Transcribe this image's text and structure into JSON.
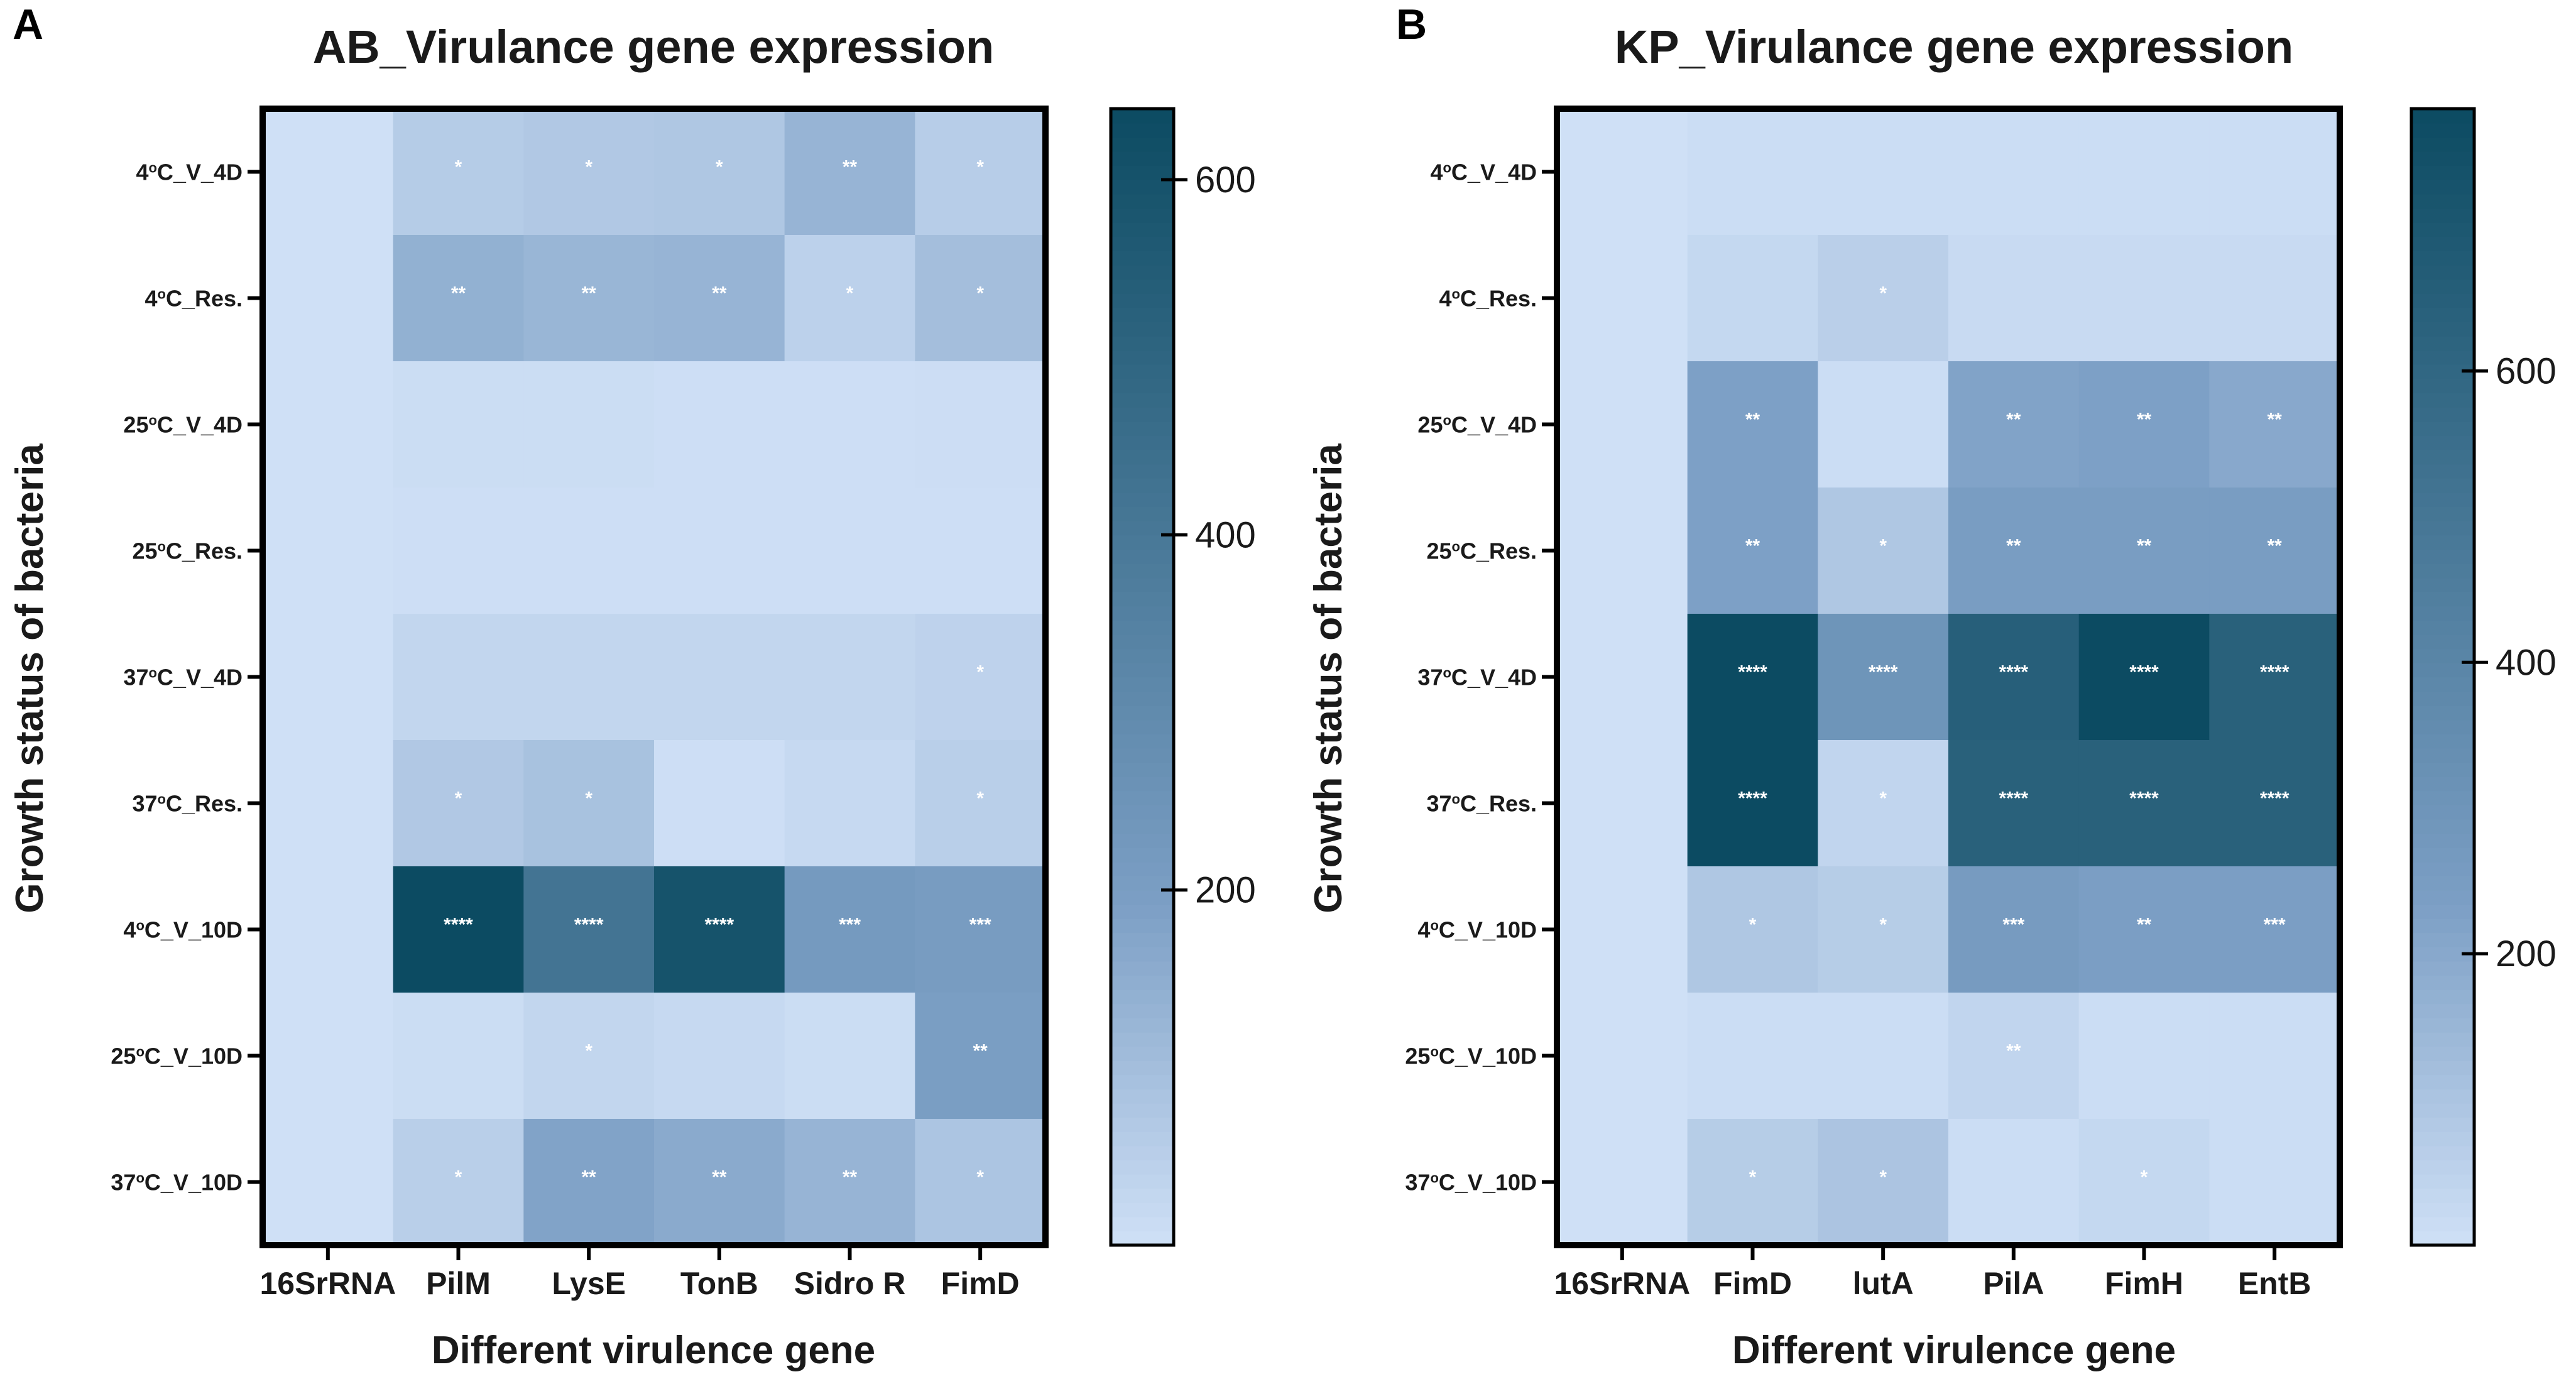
{
  "chart_data": [
    {
      "type": "heatmap",
      "panel_label": "A",
      "title": "AB_Virulance gene expression",
      "xlabel": "Different virulence gene",
      "ylabel": "Growth status of bacteria",
      "columns": [
        "16SrRNA",
        "PilM",
        "LysE",
        "TonB",
        "Sidro R",
        "FimD"
      ],
      "rows": [
        {
          "temp": "4",
          "label": "C_V_4D"
        },
        {
          "temp": "4",
          "label": "C_Res."
        },
        {
          "temp": "25",
          "label": "C_V_4D"
        },
        {
          "temp": "25",
          "label": "C_Res."
        },
        {
          "temp": "37",
          "label": "C_V_4D"
        },
        {
          "temp": "37",
          "label": "C_Res."
        },
        {
          "temp": "4",
          "label": "C_V_10D"
        },
        {
          "temp": "25",
          "label": "C_V_10D"
        },
        {
          "temp": "37",
          "label": "C_V_10D"
        }
      ],
      "degree_symbol": "o",
      "values": [
        [
          1,
          60,
          70,
          75,
          130,
          55
        ],
        [
          1,
          140,
          125,
          130,
          45,
          100
        ],
        [
          1,
          10,
          10,
          5,
          5,
          8
        ],
        [
          1,
          5,
          5,
          5,
          5,
          5
        ],
        [
          1,
          30,
          30,
          30,
          30,
          40
        ],
        [
          1,
          70,
          90,
          5,
          20,
          50
        ],
        [
          1,
          640,
          420,
          600,
          220,
          210
        ],
        [
          1,
          10,
          30,
          20,
          10,
          200
        ],
        [
          1,
          50,
          180,
          160,
          130,
          80
        ]
      ],
      "significance": [
        [
          "",
          "*",
          "*",
          "*",
          "**",
          "*"
        ],
        [
          "",
          "**",
          "**",
          "**",
          "*",
          "*"
        ],
        [
          "",
          "",
          "",
          "",
          "",
          ""
        ],
        [
          "",
          "",
          "",
          "",
          "",
          ""
        ],
        [
          "",
          "",
          "",
          "",
          "",
          "*"
        ],
        [
          "",
          "*",
          "*",
          "",
          "",
          "*"
        ],
        [
          "",
          "****",
          "****",
          "****",
          "***",
          "***"
        ],
        [
          "",
          "",
          "*",
          "",
          "",
          "**"
        ],
        [
          "",
          "*",
          "**",
          "**",
          "**",
          "*"
        ]
      ],
      "colorbar": {
        "min": 0,
        "max": 640,
        "ticks": [
          200,
          400,
          600
        ]
      }
    },
    {
      "type": "heatmap",
      "panel_label": "B",
      "title": "KP_Virulance gene expression",
      "xlabel": "Different virulence gene",
      "ylabel": "Growth status of bacteria",
      "columns": [
        "16SrRNA",
        "FimD",
        "lutA",
        "PilA",
        "FimH",
        "EntB"
      ],
      "rows": [
        {
          "temp": "4",
          "label": "C_V_4D"
        },
        {
          "temp": "4",
          "label": "C_Res."
        },
        {
          "temp": "25",
          "label": "C_V_4D"
        },
        {
          "temp": "25",
          "label": "C_Res."
        },
        {
          "temp": "37",
          "label": "C_V_4D"
        },
        {
          "temp": "37",
          "label": "C_Res."
        },
        {
          "temp": "4",
          "label": "C_V_10D"
        },
        {
          "temp": "25",
          "label": "C_V_10D"
        },
        {
          "temp": "37",
          "label": "C_V_10D"
        }
      ],
      "degree_symbol": "o",
      "values": [
        [
          1,
          10,
          10,
          10,
          10,
          10
        ],
        [
          1,
          30,
          60,
          20,
          20,
          20
        ],
        [
          1,
          230,
          10,
          220,
          230,
          200
        ],
        [
          1,
          230,
          90,
          250,
          250,
          250
        ],
        [
          1,
          780,
          300,
          650,
          780,
          640
        ],
        [
          1,
          780,
          40,
          640,
          640,
          640
        ],
        [
          1,
          90,
          70,
          260,
          240,
          240
        ],
        [
          1,
          10,
          10,
          40,
          10,
          10
        ],
        [
          1,
          70,
          100,
          10,
          30,
          10
        ]
      ],
      "significance": [
        [
          "",
          "",
          "",
          "",
          "",
          ""
        ],
        [
          "",
          "",
          "*",
          "",
          "",
          ""
        ],
        [
          "",
          "**",
          "",
          "**",
          "**",
          "**"
        ],
        [
          "",
          "**",
          "*",
          "**",
          "**",
          "**"
        ],
        [
          "",
          "****",
          "****",
          "****",
          "****",
          "****"
        ],
        [
          "",
          "****",
          "*",
          "****",
          "****",
          "****"
        ],
        [
          "",
          "*",
          "*",
          "***",
          "**",
          "***"
        ],
        [
          "",
          "",
          "",
          "**",
          "",
          ""
        ],
        [
          "",
          "*",
          "*",
          "",
          "*",
          ""
        ]
      ],
      "colorbar": {
        "min": 0,
        "max": 780,
        "ticks": [
          200,
          400,
          600
        ]
      }
    }
  ],
  "colors": {
    "low": "#cfe0f6",
    "mid": "#7c9fc5",
    "high": "#0c4b62",
    "border": "#000000"
  }
}
